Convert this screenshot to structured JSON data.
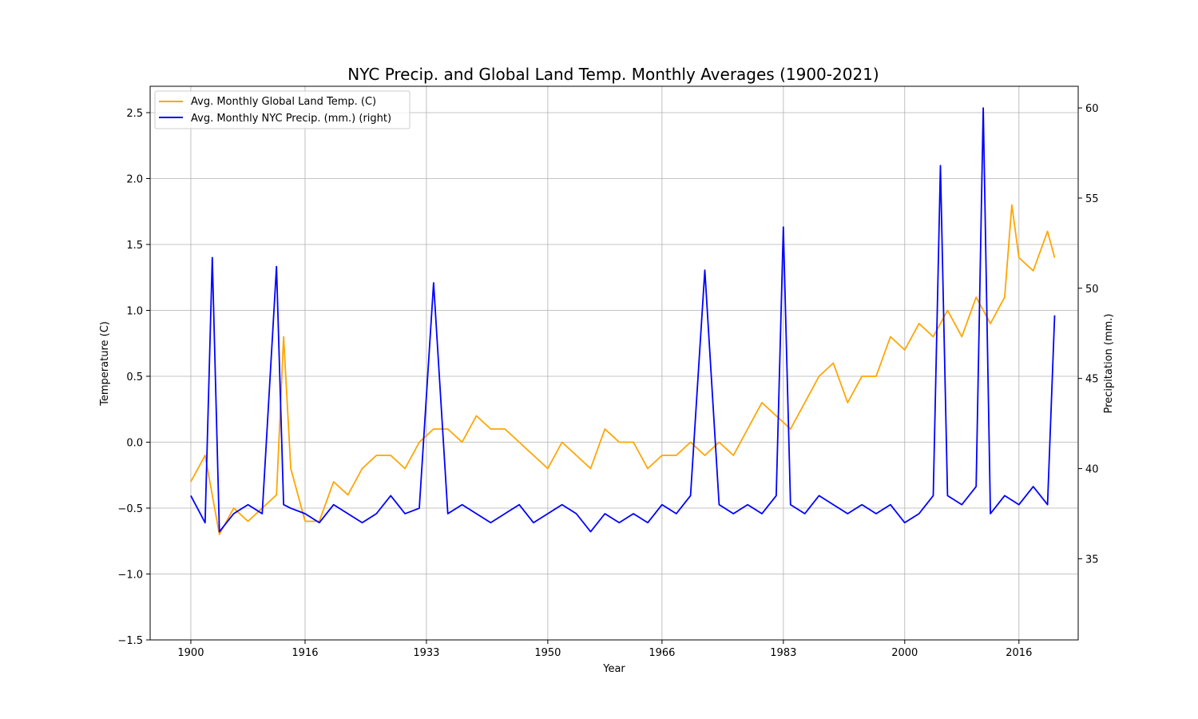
{
  "chart_data": {
    "type": "line",
    "title": "NYC Precip. and Global Land Temp. Monthly Averages (1900-2021)",
    "xlabel": "Year",
    "ylabel_left": "Temperature (C)",
    "ylabel_right": "Precipitation (mm.)",
    "xlim": [
      1894.3,
      2024.3
    ],
    "ylim_left": [
      -1.5,
      2.7
    ],
    "ylim_right": [
      30.5,
      61.2
    ],
    "x_ticks": [
      1900,
      1916,
      1933,
      1950,
      1966,
      1983,
      2000,
      2016
    ],
    "y_ticks_left": [
      -1.5,
      -1.0,
      -0.5,
      0.0,
      0.5,
      1.0,
      1.5,
      2.0,
      2.5
    ],
    "y_ticks_left_labels": [
      "−1.5",
      "−1.0",
      "−0.5",
      "0.0",
      "0.5",
      "1.0",
      "1.5",
      "2.0",
      "2.5"
    ],
    "y_ticks_right": [
      35,
      40,
      45,
      50,
      55,
      60
    ],
    "grid": true,
    "legend_position": "top-left",
    "series": [
      {
        "name": "Avg. Monthly Global Land Temp. (C)",
        "axis": "left",
        "color": "#ffa500",
        "x": [
          1900,
          1902,
          1904,
          1906,
          1908,
          1910,
          1912,
          1913,
          1914,
          1916,
          1918,
          1920,
          1922,
          1924,
          1926,
          1928,
          1930,
          1932,
          1934,
          1936,
          1938,
          1940,
          1942,
          1944,
          1946,
          1948,
          1950,
          1952,
          1954,
          1956,
          1958,
          1960,
          1962,
          1964,
          1966,
          1968,
          1970,
          1972,
          1974,
          1976,
          1978,
          1980,
          1982,
          1984,
          1986,
          1988,
          1990,
          1992,
          1994,
          1996,
          1998,
          2000,
          2002,
          2004,
          2006,
          2008,
          2010,
          2012,
          2014,
          2015,
          2016,
          2018,
          2020,
          2021
        ],
        "y": [
          -0.3,
          -0.1,
          -0.7,
          -0.5,
          -0.6,
          -0.5,
          -0.4,
          0.8,
          -0.2,
          -0.6,
          -0.6,
          -0.3,
          -0.4,
          -0.2,
          -0.1,
          -0.1,
          -0.2,
          0.0,
          0.1,
          0.1,
          0.0,
          0.2,
          0.1,
          0.1,
          0.0,
          -0.1,
          -0.2,
          0.0,
          -0.1,
          -0.2,
          0.1,
          0.0,
          0.0,
          -0.2,
          -0.1,
          -0.1,
          0.0,
          -0.1,
          0.0,
          -0.1,
          0.1,
          0.3,
          0.2,
          0.1,
          0.3,
          0.5,
          0.6,
          0.3,
          0.5,
          0.5,
          0.8,
          0.7,
          0.9,
          0.8,
          1.0,
          0.8,
          1.1,
          0.9,
          1.1,
          1.8,
          1.4,
          1.3,
          1.6,
          1.4
        ]
      },
      {
        "name": "Avg. Monthly NYC Precip. (mm.) (right)",
        "axis": "right",
        "color": "#0000ff",
        "x": [
          1900,
          1902,
          1903,
          1904,
          1906,
          1908,
          1910,
          1912,
          1913,
          1914,
          1916,
          1918,
          1920,
          1922,
          1924,
          1926,
          1928,
          1930,
          1932,
          1934,
          1936,
          1938,
          1940,
          1942,
          1944,
          1946,
          1948,
          1950,
          1952,
          1954,
          1956,
          1958,
          1960,
          1962,
          1964,
          1966,
          1968,
          1970,
          1972,
          1974,
          1976,
          1978,
          1980,
          1982,
          1983,
          1984,
          1986,
          1988,
          1990,
          1992,
          1994,
          1996,
          1998,
          2000,
          2002,
          2004,
          2005,
          2006,
          2008,
          2010,
          2011,
          2012,
          2014,
          2016,
          2018,
          2020,
          2021
        ],
        "y": [
          38.5,
          37.0,
          51.7,
          36.5,
          37.5,
          38.0,
          37.5,
          51.2,
          38.0,
          37.8,
          37.5,
          37.0,
          38.0,
          37.5,
          37.0,
          37.5,
          38.5,
          37.5,
          37.8,
          50.3,
          37.5,
          38.0,
          37.5,
          37.0,
          37.5,
          38.0,
          37.0,
          37.5,
          38.0,
          37.5,
          36.5,
          37.5,
          37.0,
          37.5,
          37.0,
          38.0,
          37.5,
          38.5,
          51.0,
          38.0,
          37.5,
          38.0,
          37.5,
          38.5,
          53.4,
          38.0,
          37.5,
          38.5,
          38.0,
          37.5,
          38.0,
          37.5,
          38.0,
          37.0,
          37.5,
          38.5,
          56.8,
          38.5,
          38.0,
          39.0,
          60.0,
          37.5,
          38.5,
          38.0,
          39.0,
          38.0,
          48.5
        ]
      }
    ]
  }
}
